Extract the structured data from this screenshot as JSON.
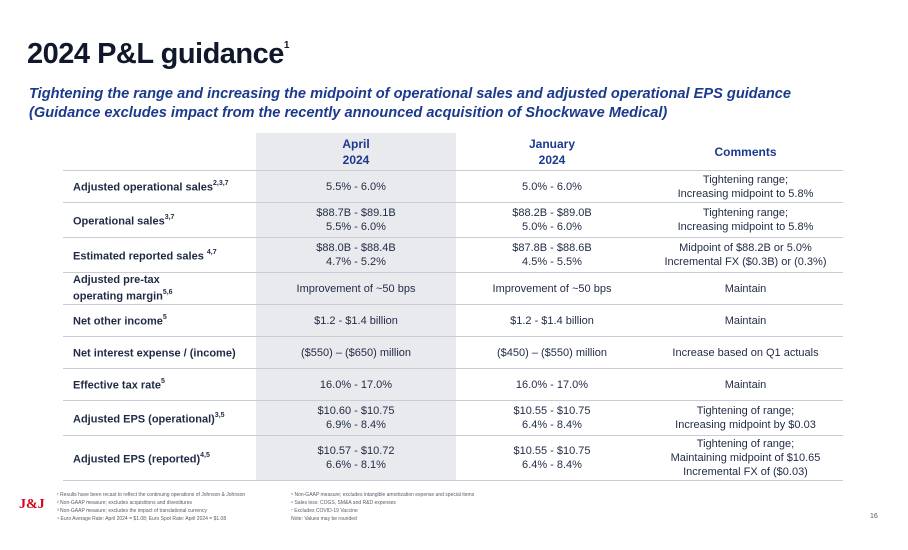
{
  "title": "2024 P&L guidance",
  "title_sup": "1",
  "subtitle": {
    "line1": "Tightening the range and increasing the midpoint of operational sales and adjusted operational EPS guidance",
    "line2": "(Guidance excludes impact from the recently announced acquisition of Shockwave Medical)"
  },
  "table": {
    "headers": {
      "april": [
        "April",
        "2024"
      ],
      "january": [
        "January",
        "2024"
      ],
      "comments": "Comments"
    },
    "rows": [
      {
        "label": "Adjusted operational sales",
        "sup": "2,3,7",
        "april": [
          "5.5% - 6.0%"
        ],
        "january": [
          "5.0% - 6.0%"
        ],
        "comments": [
          "Tightening range;",
          "Increasing midpoint to 5.8%"
        ]
      },
      {
        "label": "Operational sales",
        "sup": "3,7",
        "april": [
          "$88.7B - $89.1B",
          "5.5% - 6.0%"
        ],
        "january": [
          "$88.2B - $89.0B",
          "5.0% - 6.0%"
        ],
        "comments": [
          "Tightening range;",
          "Increasing midpoint to 5.8%"
        ]
      },
      {
        "label": "Estimated reported sales ",
        "sup": "4,7",
        "april": [
          "$88.0B - $88.4B",
          "4.7% - 5.2%"
        ],
        "january": [
          "$87.8B - $88.6B",
          "4.5% - 5.5%"
        ],
        "comments": [
          "Midpoint of $88.2B or 5.0%",
          "Incremental FX ($0.3B) or (0.3%)"
        ]
      },
      {
        "label": "Adjusted pre-tax",
        "label2": "operating margin",
        "sup": "5,6",
        "april": [
          "Improvement of ~50 bps"
        ],
        "january": [
          "Improvement of ~50 bps"
        ],
        "comments": [
          "Maintain"
        ]
      },
      {
        "label": "Net other income",
        "sup": "5",
        "april": [
          "$1.2 - $1.4 billion"
        ],
        "january": [
          "$1.2 - $1.4 billion"
        ],
        "comments": [
          "Maintain"
        ]
      },
      {
        "label": "Net interest expense / (income)",
        "sup": "",
        "april": [
          "($550) – ($650) million"
        ],
        "january": [
          "($450) – ($550) million"
        ],
        "comments": [
          "Increase based on Q1 actuals"
        ]
      },
      {
        "label": "Effective tax rate",
        "sup": "5",
        "april": [
          "16.0% - 17.0%"
        ],
        "january": [
          "16.0% - 17.0%"
        ],
        "comments": [
          "Maintain"
        ]
      },
      {
        "label": "Adjusted EPS (operational)",
        "sup": "3,5",
        "april": [
          "$10.60 - $10.75",
          "6.9% - 8.4%"
        ],
        "january": [
          "$10.55 - $10.75",
          "6.4% - 8.4%"
        ],
        "comments": [
          "Tightening of range;",
          "Increasing midpoint by $0.03"
        ]
      },
      {
        "label": "Adjusted EPS (reported)",
        "sup": "4,5",
        "april": [
          "$10.57 - $10.72",
          "6.6% - 8.1%"
        ],
        "january": [
          "$10.55 - $10.75",
          "6.4% - 8.4%"
        ],
        "comments": [
          "Tightening of range;",
          "Maintaining midpoint of $10.65",
          "Incremental FX of ($0.03)"
        ]
      }
    ]
  },
  "footer": {
    "logo": "J&J",
    "notes_left": [
      "¹ Results have been recast to reflect the continuing operations of Johnson & Johnson",
      "² Non-GAAP measure; excludes acquisitions and divestitures",
      "³ Non-GAAP measure; excludes the impact of translational currency",
      "⁴ Euro Average Rate: April 2024 = $1.08; Euro Spot Rate: April 2024 = $1.08"
    ],
    "notes_right": [
      "⁵ Non-GAAP measure; excludes intangible amortization expense and special items",
      "⁶ Sales less: COGS, SM&A and R&D expenses",
      "⁷ Excludes COVID-19 Vaccine",
      "  Note: Values may be rounded"
    ],
    "page_number": "16"
  }
}
